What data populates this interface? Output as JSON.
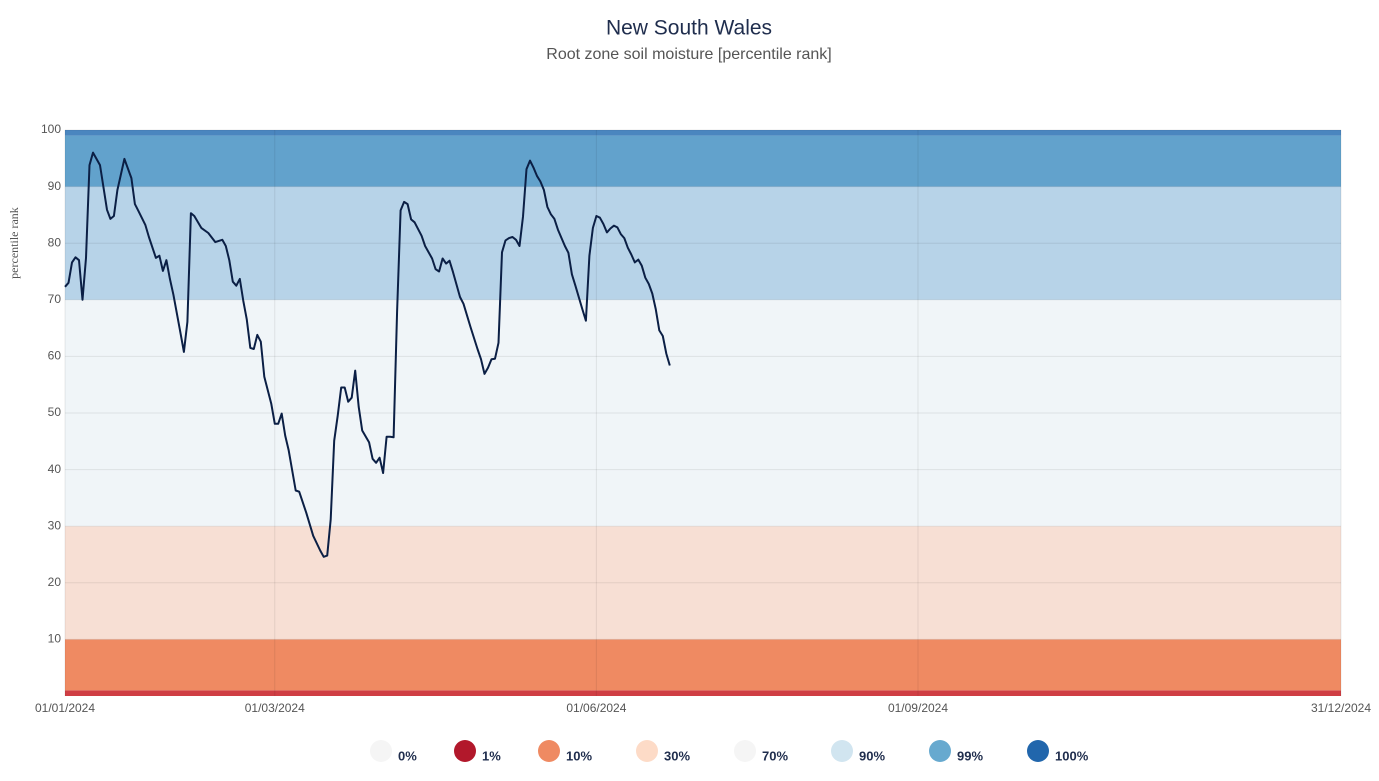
{
  "chart_data": {
    "type": "line",
    "title": "New South Wales",
    "subtitle": "Root zone soil moisture [percentile rank]",
    "y_label": "percentile rank",
    "ylim": [
      0,
      100
    ],
    "yticks": [
      10,
      20,
      30,
      40,
      50,
      60,
      70,
      80,
      90,
      100
    ],
    "xlim": [
      "01/01/2024",
      "31/12/2024"
    ],
    "xticks": [
      "01/01/2024",
      "01/03/2024",
      "01/06/2024",
      "01/09/2024",
      "31/12/2024"
    ],
    "grid": true,
    "color": "#0b1f45",
    "bands": [
      {
        "from": 0,
        "to": 1,
        "color": "#cf3e44"
      },
      {
        "from": 1,
        "to": 10,
        "color": "#ef8a62"
      },
      {
        "from": 10,
        "to": 30,
        "color": "#f7dfd4"
      },
      {
        "from": 30,
        "to": 70,
        "color": "#f0f5f8"
      },
      {
        "from": 70,
        "to": 90,
        "color": "#b7d3e8"
      },
      {
        "from": 90,
        "to": 99,
        "color": "#62a2cc"
      },
      {
        "from": 99,
        "to": 100,
        "color": "#4a86bf"
      }
    ],
    "legend": [
      {
        "name": "0%",
        "color": "#f5f5f5"
      },
      {
        "name": "1%",
        "color": "#b2182b"
      },
      {
        "name": "10%",
        "color": "#ef8a62"
      },
      {
        "name": "30%",
        "color": "#fddbc7"
      },
      {
        "name": "70%",
        "color": "#f5f5f5"
      },
      {
        "name": "90%",
        "color": "#d1e5f0"
      },
      {
        "name": "99%",
        "color": "#67a9cf"
      },
      {
        "name": "100%",
        "color": "#2166ac"
      }
    ],
    "x": [
      "01/01/2024",
      "02/01/2024",
      "03/01/2024",
      "04/01/2024",
      "05/01/2024",
      "06/01/2024",
      "07/01/2024",
      "08/01/2024",
      "09/01/2024",
      "11/01/2024",
      "13/01/2024",
      "14/01/2024",
      "15/01/2024",
      "16/01/2024",
      "18/01/2024",
      "20/01/2024",
      "21/01/2024",
      "22/01/2024",
      "24/01/2024",
      "25/01/2024",
      "27/01/2024",
      "28/01/2024",
      "29/01/2024",
      "30/01/2024",
      "31/01/2024",
      "01/02/2024",
      "03/02/2024",
      "04/02/2024",
      "05/02/2024",
      "06/02/2024",
      "07/02/2024",
      "09/02/2024",
      "11/02/2024",
      "13/02/2024",
      "15/02/2024",
      "16/02/2024",
      "17/02/2024",
      "18/02/2024",
      "19/02/2024",
      "20/02/2024",
      "21/02/2024",
      "22/02/2024",
      "23/02/2024",
      "24/02/2024",
      "25/02/2024",
      "26/02/2024",
      "27/02/2024",
      "29/02/2024",
      "01/03/2024",
      "02/03/2024",
      "03/03/2024",
      "04/03/2024",
      "05/03/2024",
      "07/03/2024",
      "08/03/2024",
      "10/03/2024",
      "12/03/2024",
      "14/03/2024",
      "15/03/2024",
      "16/03/2024",
      "17/03/2024",
      "18/03/2024",
      "19/03/2024",
      "20/03/2024",
      "21/03/2024",
      "22/03/2024",
      "23/03/2024",
      "24/03/2024",
      "25/03/2024",
      "26/03/2024",
      "28/03/2024",
      "29/03/2024",
      "30/03/2024",
      "31/03/2024",
      "01/04/2024",
      "02/04/2024",
      "03/04/2024",
      "04/04/2024",
      "05/04/2024",
      "06/04/2024",
      "07/04/2024",
      "08/04/2024",
      "09/04/2024",
      "10/04/2024",
      "12/04/2024",
      "13/04/2024",
      "15/04/2024",
      "16/04/2024",
      "17/04/2024",
      "18/04/2024",
      "19/04/2024",
      "20/04/2024",
      "21/04/2024",
      "23/04/2024",
      "24/04/2024",
      "26/04/2024",
      "28/04/2024",
      "29/04/2024",
      "30/04/2024",
      "01/05/2024",
      "02/05/2024",
      "03/05/2024",
      "04/05/2024",
      "05/05/2024",
      "06/05/2024",
      "07/05/2024",
      "08/05/2024",
      "09/05/2024",
      "10/05/2024",
      "11/05/2024",
      "12/05/2024",
      "13/05/2024",
      "14/05/2024",
      "15/05/2024",
      "16/05/2024",
      "17/05/2024",
      "18/05/2024",
      "19/05/2024",
      "20/05/2024",
      "21/05/2024",
      "23/05/2024",
      "24/05/2024",
      "25/05/2024",
      "26/05/2024",
      "28/05/2024",
      "29/05/2024",
      "30/05/2024",
      "31/05/2024",
      "01/06/2024",
      "02/06/2024",
      "03/06/2024",
      "04/06/2024",
      "05/06/2024",
      "06/06/2024",
      "07/06/2024",
      "08/06/2024",
      "09/06/2024",
      "10/06/2024",
      "11/06/2024",
      "12/06/2024",
      "13/06/2024",
      "14/06/2024",
      "15/06/2024",
      "16/06/2024",
      "17/06/2024",
      "18/06/2024",
      "19/06/2024",
      "20/06/2024",
      "21/06/2024",
      "22/06/2024"
    ],
    "values": [
      72.3,
      73,
      76.6,
      77.5,
      77,
      70,
      77.4,
      93.8,
      96,
      93.8,
      85.9,
      84.3,
      84.8,
      89.4,
      94.9,
      91.5,
      86.9,
      85.7,
      83.2,
      81.1,
      77.4,
      77.8,
      75.1,
      77,
      73.7,
      70.9,
      64.2,
      60.8,
      66.1,
      85.3,
      84.8,
      82.7,
      81.8,
      80.2,
      80.6,
      79.5,
      77,
      73.2,
      72.5,
      73.7,
      69.8,
      66.5,
      61.5,
      61.3,
      63.8,
      62.6,
      56.4,
      51.6,
      48.1,
      48.1,
      49.9,
      46,
      43.4,
      36.3,
      36.1,
      32.4,
      28.3,
      25.7,
      24.6,
      24.8,
      31.2,
      45.1,
      49.5,
      54.5,
      54.5,
      52,
      52.7,
      57.5,
      51.1,
      46.9,
      44.8,
      41.9,
      41.2,
      42.1,
      39.4,
      45.8,
      45.8,
      45.7,
      68,
      85.8,
      87.3,
      86.9,
      84.2,
      83.7,
      81.3,
      79.5,
      77.3,
      75.4,
      75,
      77.3,
      76.4,
      76.9,
      74.9,
      70.5,
      69.3,
      65.2,
      61.3,
      59.5,
      56.9,
      58,
      59.5,
      59.6,
      62.4,
      78.4,
      80.5,
      80.9,
      81.1,
      80.6,
      79.5,
      84.7,
      93.1,
      94.6,
      93.4,
      91.9,
      90.9,
      89.4,
      86.4,
      85.1,
      84.3,
      82.4,
      79.5,
      78.3,
      74.5,
      72.5,
      68.3,
      66.3,
      77.8,
      82.7,
      84.8,
      84.5,
      83.4,
      81.9,
      82.6,
      83.1,
      82.8,
      81.6,
      80.9,
      79.2,
      78,
      76.6,
      77.1,
      76,
      73.9,
      72.8,
      71.1,
      68.3,
      64.6,
      63.6,
      60.5,
      58.4
    ]
  }
}
